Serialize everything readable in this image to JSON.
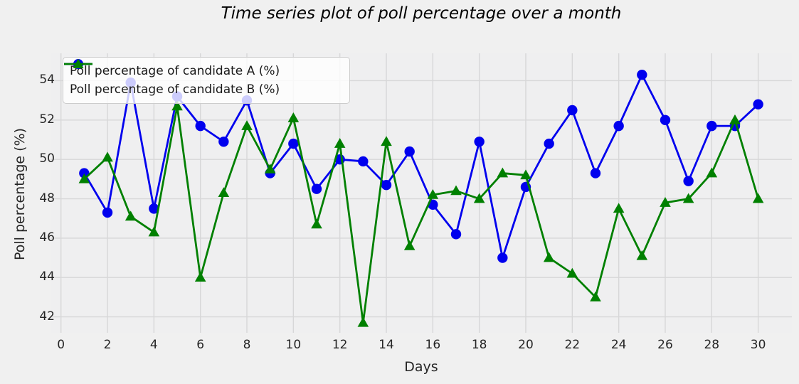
{
  "chart": {
    "title": "Time series plot of poll percentage over a month"
  },
  "chart_data": {
    "type": "line",
    "title": "Time series plot of poll percentage over a month",
    "xlabel": "Days",
    "ylabel": "Poll percentage (%)",
    "x": [
      1,
      2,
      3,
      4,
      5,
      6,
      7,
      8,
      9,
      10,
      11,
      12,
      13,
      14,
      15,
      16,
      17,
      18,
      19,
      20,
      21,
      22,
      23,
      24,
      25,
      26,
      27,
      28,
      29,
      30
    ],
    "series": [
      {
        "name": "Poll percentage of candidate A (%)",
        "marker": "circle",
        "color": "#0000ee",
        "values": [
          49.3,
          47.3,
          53.9,
          47.5,
          53.2,
          51.7,
          50.9,
          53.0,
          49.3,
          50.8,
          48.5,
          50.0,
          49.9,
          48.7,
          50.4,
          47.7,
          46.2,
          50.9,
          45.0,
          48.6,
          50.8,
          52.5,
          49.3,
          51.7,
          54.3,
          52.0,
          48.9,
          51.7,
          51.7,
          52.8
        ]
      },
      {
        "name": "Poll percentage of candidate B (%)",
        "marker": "triangle",
        "color": "#008000",
        "values": [
          49.0,
          50.1,
          47.1,
          46.3,
          52.7,
          44.0,
          48.3,
          51.7,
          49.5,
          52.1,
          46.7,
          50.8,
          41.7,
          50.9,
          45.6,
          48.2,
          48.4,
          48.0,
          49.3,
          49.2,
          45.0,
          44.2,
          43.0,
          47.5,
          45.1,
          47.8,
          48.0,
          49.3,
          52.0,
          48.0
        ]
      }
    ],
    "xticks": [
      0,
      2,
      4,
      6,
      8,
      10,
      12,
      14,
      16,
      18,
      20,
      22,
      24,
      26,
      28,
      30
    ],
    "yticks": [
      42,
      44,
      46,
      48,
      50,
      52,
      54
    ],
    "xlim": [
      -0.45,
      31.45
    ],
    "ylim": [
      41.19,
      55.39
    ],
    "grid": true,
    "grid_color": "#d7d7d8",
    "background_color": "#efeff0",
    "figure_color": "#f0f0f0",
    "legend_position": "upper left",
    "line_width": 2.8
  }
}
